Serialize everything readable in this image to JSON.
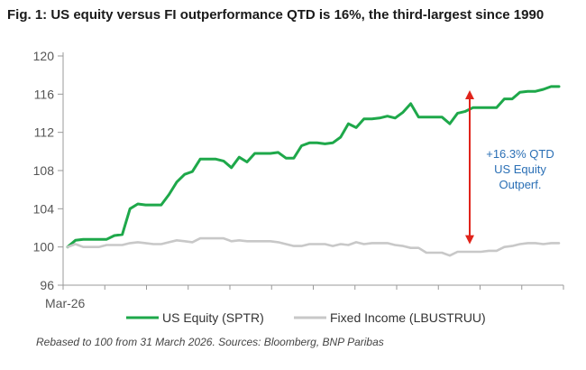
{
  "colors": {
    "equity": "#1ea84a",
    "fixed_income": "#c8c8c8",
    "arrow": "#e0241b",
    "annotation": "#2a6fb5",
    "axis": "#999999"
  },
  "chart_data": {
    "type": "line",
    "title": "Fig. 1: US equity versus FI outperformance QTD is 16%, the third-largest since 1990",
    "ylim": [
      96,
      120
    ],
    "y_ticks": [
      "96",
      "100",
      "104",
      "108",
      "112",
      "116",
      "120"
    ],
    "x_ticks": [
      "Mar-26"
    ],
    "grid": false,
    "legend_position": "bottom",
    "series": [
      {
        "name": "US Equity (SPTR)",
        "values": [
          100,
          100.7,
          100.8,
          100.8,
          100.8,
          100.8,
          101.2,
          101.3,
          104,
          104.5,
          104.4,
          104.4,
          104.4,
          105.5,
          106.8,
          107.6,
          107.9,
          109.2,
          109.2,
          109.2,
          109,
          108.3,
          109.4,
          108.9,
          109.8,
          109.8,
          109.8,
          109.9,
          109.3,
          109.3,
          110.6,
          110.9,
          110.9,
          110.8,
          110.9,
          111.5,
          112.9,
          112.5,
          113.4,
          113.4,
          113.5,
          113.7,
          113.5,
          114.1,
          115,
          113.6,
          113.6,
          113.6,
          113.6,
          112.9,
          114,
          114.2,
          114.6,
          114.6,
          114.6,
          114.6,
          115.5,
          115.5,
          116.2,
          116.3,
          116.3,
          116.5,
          116.8,
          116.8
        ]
      },
      {
        "name": "Fixed Income (LBUSTRUU)",
        "values": [
          100,
          100.3,
          100,
          100,
          100,
          100.2,
          100.2,
          100.2,
          100.4,
          100.5,
          100.4,
          100.3,
          100.3,
          100.5,
          100.7,
          100.6,
          100.5,
          100.9,
          100.9,
          100.9,
          100.9,
          100.6,
          100.7,
          100.6,
          100.6,
          100.6,
          100.6,
          100.5,
          100.3,
          100.1,
          100.1,
          100.3,
          100.3,
          100.3,
          100.1,
          100.3,
          100.2,
          100.5,
          100.3,
          100.4,
          100.4,
          100.4,
          100.2,
          100.1,
          99.9,
          99.9,
          99.4,
          99.4,
          99.4,
          99.1,
          99.5,
          99.5,
          99.5,
          99.5,
          99.6,
          99.6,
          100,
          100.1,
          100.3,
          100.4,
          100.4,
          100.3,
          100.4,
          100.4
        ]
      }
    ],
    "annotation": {
      "lines": [
        "+16.3% QTD",
        "US Equity",
        "Outperf."
      ],
      "arrow_from": 100.1,
      "arrow_to": 116.6
    }
  },
  "source_text": "Rebased to 100 from 31 March 2026. Sources: Bloomberg, BNP Paribas"
}
